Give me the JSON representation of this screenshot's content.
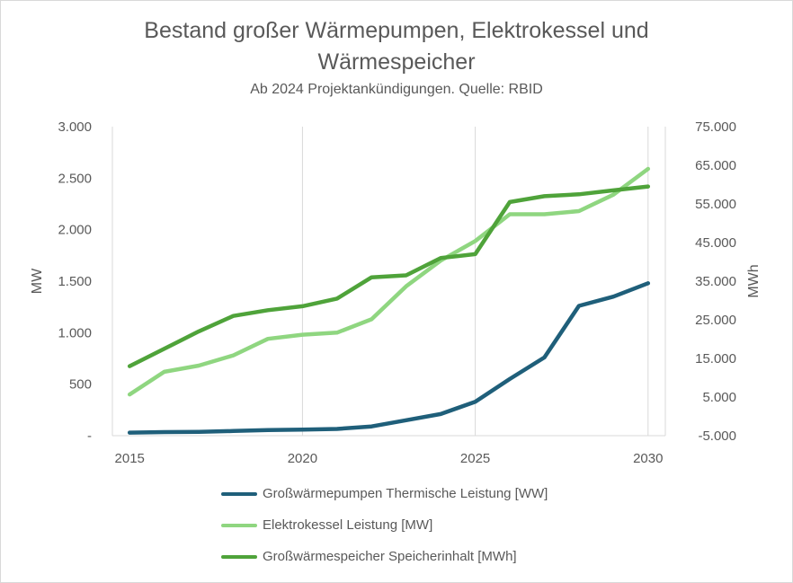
{
  "title_line1": "Bestand großer Wärmepumpen, Elektrokessel und",
  "title_line2": "Wärmespeicher",
  "subtitle": "Ab 2024 Projektankündigungen. Quelle: RBID",
  "chart_data": {
    "type": "line",
    "title": "Bestand großer Wärmepumpen, Elektrokessel und Wärmespeicher",
    "subtitle": "Ab 2024 Projektankündigungen. Quelle: RBID",
    "ylabel": "MW",
    "y2label": "MWh",
    "x_ticks": [
      "2015",
      "2020",
      "2025",
      "2030"
    ],
    "y_ticks": [
      "-",
      "500",
      "1.000",
      "1.500",
      "2.000",
      "2.500",
      "3.000"
    ],
    "y2_ticks": [
      "-5.000",
      "5.000",
      "15.000",
      "25.000",
      "35.000",
      "45.000",
      "55.000",
      "65.000",
      "75.000"
    ],
    "ylim": [
      0,
      3000
    ],
    "y2lim": [
      -5000,
      75000
    ],
    "xlim": [
      2014.5,
      2030.5
    ],
    "x": [
      2015,
      2016,
      2017,
      2018,
      2019,
      2020,
      2021,
      2022,
      2023,
      2024,
      2025,
      2026,
      2027,
      2028,
      2029,
      2030
    ],
    "grid": "vertical",
    "legend": "bottom",
    "series": [
      {
        "name": "Großwärmepumpen Thermische Leistung [WW]",
        "axis": "left",
        "color": "#1f5f7a",
        "values": [
          30,
          35,
          37,
          45,
          55,
          58,
          65,
          90,
          150,
          210,
          330,
          550,
          760,
          1260,
          1350,
          1480
        ]
      },
      {
        "name": "Elektrokessel Leistung [MW]",
        "axis": "left",
        "color": "#8fd680",
        "values": [
          400,
          620,
          680,
          780,
          940,
          980,
          1000,
          1130,
          1450,
          1700,
          1890,
          2150,
          2150,
          2180,
          2340,
          2590
        ]
      },
      {
        "name": "Großwärmespeicher  Speicherinhalt [MWh]",
        "axis": "right",
        "color": "#4fa33a",
        "values": [
          13000,
          17500,
          22000,
          26000,
          27500,
          28500,
          30500,
          36000,
          36500,
          41000,
          42000,
          55500,
          57000,
          57500,
          58500,
          59500
        ]
      }
    ]
  }
}
